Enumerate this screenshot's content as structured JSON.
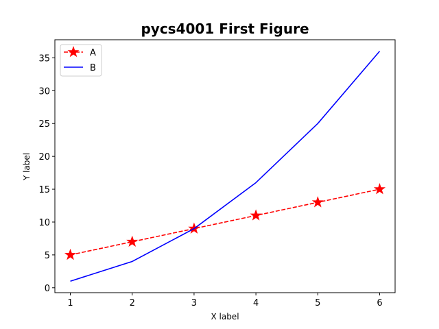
{
  "chart_data": {
    "type": "line",
    "title": "pycs4001 First Figure",
    "xlabel": "X label",
    "ylabel": "Y label",
    "xlim": [
      0.75,
      6.25
    ],
    "ylim": [
      -0.75,
      37.75
    ],
    "x_ticks": [
      1,
      2,
      3,
      4,
      5,
      6
    ],
    "y_ticks": [
      0,
      5,
      10,
      15,
      20,
      25,
      30,
      35
    ],
    "grid": false,
    "legend_position": "top-left",
    "series": [
      {
        "name": "A",
        "x": [
          1,
          2,
          3,
          4,
          5,
          6
        ],
        "values": [
          5,
          7,
          9,
          11,
          13,
          15
        ],
        "color": "#ff0000",
        "line_style": "dashed",
        "marker": "star"
      },
      {
        "name": "B",
        "x": [
          1,
          2,
          3,
          4,
          5,
          6
        ],
        "values": [
          1,
          4,
          9,
          16,
          25,
          36
        ],
        "color": "#0000ff",
        "line_style": "solid",
        "marker": "none"
      }
    ]
  }
}
